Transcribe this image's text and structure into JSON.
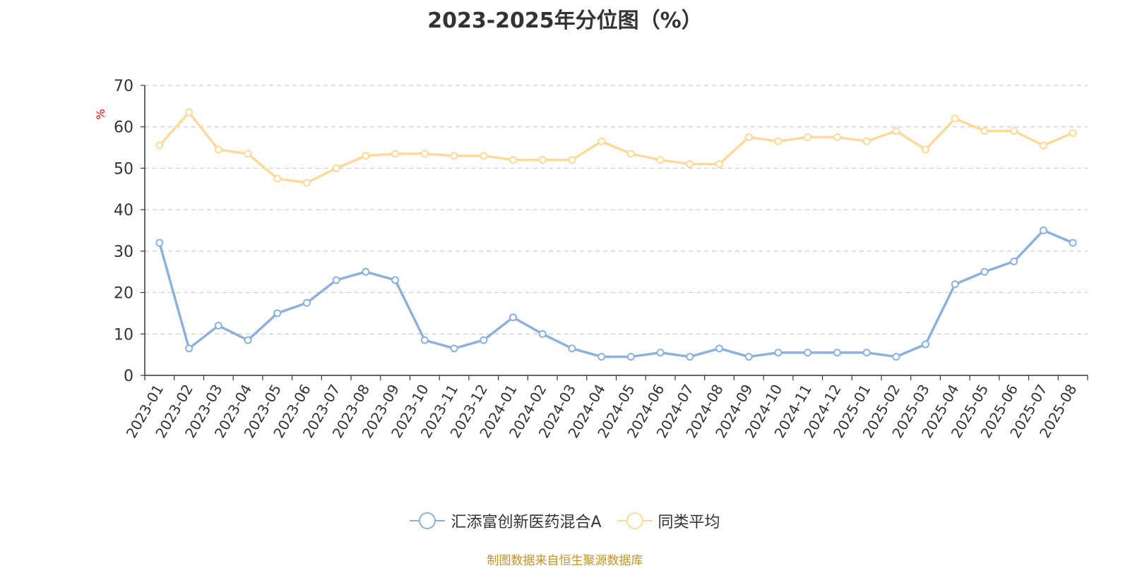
{
  "chart_data": {
    "type": "line",
    "title": "2023-2025年分位图（%）",
    "ylabel": "%",
    "xlabel": "",
    "ylim": [
      0,
      70
    ],
    "yticks": [
      0,
      10,
      20,
      30,
      40,
      50,
      60,
      70
    ],
    "grid": true,
    "legend_position": "bottom",
    "categories": [
      "2023-01",
      "2023-02",
      "2023-03",
      "2023-04",
      "2023-05",
      "2023-06",
      "2023-07",
      "2023-08",
      "2023-09",
      "2023-10",
      "2023-11",
      "2023-12",
      "2024-01",
      "2024-02",
      "2024-03",
      "2024-04",
      "2024-05",
      "2024-06",
      "2024-07",
      "2024-08",
      "2024-09",
      "2024-10",
      "2024-11",
      "2024-12",
      "2025-01",
      "2025-02",
      "2025-03",
      "2025-04",
      "2025-05",
      "2025-06",
      "2025-07",
      "2025-08"
    ],
    "series": [
      {
        "name": "汇添富创新医药混合A",
        "color": "#8eb0dd",
        "values": [
          32,
          6.5,
          12,
          8.5,
          15,
          17.5,
          23,
          25,
          23,
          8.5,
          6.5,
          8.5,
          14,
          10,
          6.5,
          4.5,
          4.5,
          5.5,
          4.5,
          6.5,
          4.5,
          5.5,
          5.5,
          5.5,
          5.5,
          4.5,
          7.5,
          22,
          25,
          27.5,
          35,
          32
        ]
      },
      {
        "name": "同类平均",
        "color": "#fdd99a",
        "values": [
          55.5,
          63.5,
          54.5,
          53.5,
          47.5,
          46.5,
          50,
          53,
          53.5,
          53.5,
          53,
          53,
          52,
          52,
          52,
          56.5,
          53.5,
          52,
          51,
          51,
          57.5,
          56.5,
          57.5,
          57.5,
          56.5,
          59,
          54.5,
          62,
          59,
          59,
          55.5,
          58.5
        ]
      }
    ]
  },
  "source_note": "制图数据来自恒生聚源数据库"
}
